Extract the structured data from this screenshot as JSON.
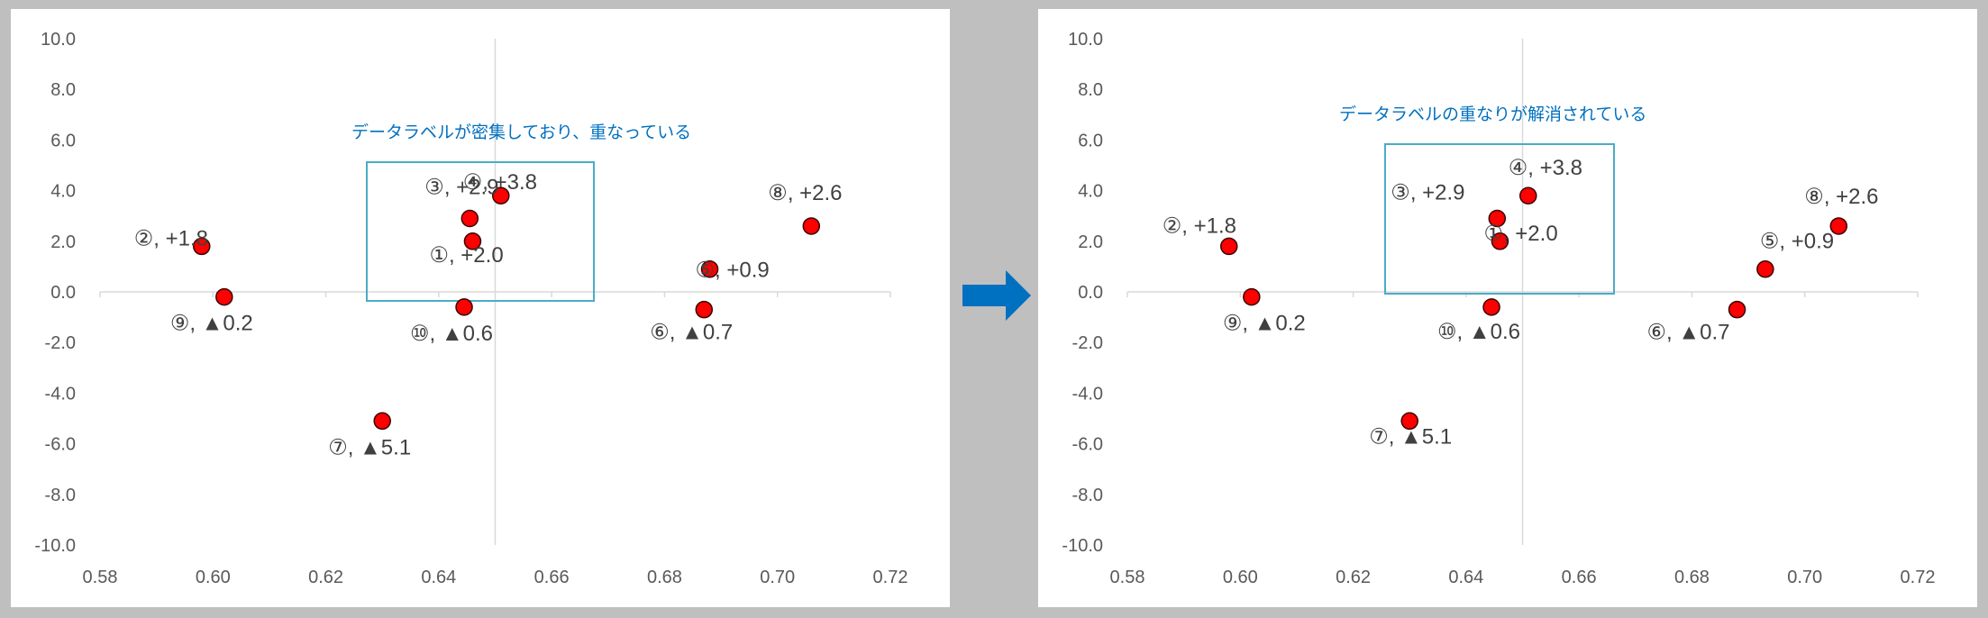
{
  "colors": {
    "background": "#bfbfbf",
    "panel": "#ffffff",
    "axis": "#d9d9d9",
    "tick_text": "#595959",
    "marker_fill": "#ff0000",
    "marker_stroke": "#3a0000",
    "annotation": "#0070c0",
    "annotation_box": "#4bacc6",
    "arrow": "#0070c0",
    "label_text": "#404040"
  },
  "icons": {
    "arrow": "right-arrow-icon"
  },
  "chart_data": [
    {
      "type": "scatter",
      "title": "",
      "xlabel": "",
      "ylabel": "",
      "xlim": [
        0.58,
        0.72
      ],
      "ylim": [
        -10,
        10
      ],
      "x_ticks": [
        "0.58",
        "0.60",
        "0.62",
        "0.64",
        "0.66",
        "0.68",
        "0.70",
        "0.72"
      ],
      "y_ticks": [
        "10.0",
        "8.0",
        "6.0",
        "4.0",
        "2.0",
        "0.0",
        "-2.0",
        "-4.0",
        "-6.0",
        "-8.0",
        "-10.0"
      ],
      "grid": false,
      "x": [
        0.646,
        0.598,
        0.6455,
        0.651,
        0.688,
        0.687,
        0.63,
        0.706,
        0.602,
        0.6445
      ],
      "y": [
        2.0,
        1.8,
        2.9,
        3.8,
        0.9,
        -0.7,
        -5.1,
        2.6,
        -0.2,
        -0.6
      ],
      "labels": [
        "①, +2.0",
        "②, +1.8",
        "③, +2.9",
        "④, +3.8",
        "⑤, +0.9",
        "⑥, ▲0.7",
        "⑦, ▲5.1",
        "⑧, +2.6",
        "⑨, ▲0.2",
        "⑩, ▲0.6"
      ],
      "annotation": "データラベルが密集しており、重なっている"
    },
    {
      "type": "scatter",
      "title": "",
      "xlabel": "",
      "ylabel": "",
      "xlim": [
        0.58,
        0.72
      ],
      "ylim": [
        -10,
        10
      ],
      "x_ticks": [
        "0.58",
        "0.60",
        "0.62",
        "0.64",
        "0.66",
        "0.68",
        "0.70",
        "0.72"
      ],
      "y_ticks": [
        "10.0",
        "8.0",
        "6.0",
        "4.0",
        "2.0",
        "0.0",
        "-2.0",
        "-4.0",
        "-6.0",
        "-8.0",
        "-10.0"
      ],
      "grid": false,
      "x": [
        0.646,
        0.598,
        0.6455,
        0.651,
        0.693,
        0.688,
        0.63,
        0.706,
        0.602,
        0.6445
      ],
      "y": [
        2.0,
        1.8,
        2.9,
        3.8,
        0.9,
        -0.7,
        -5.1,
        2.6,
        -0.2,
        -0.6
      ],
      "labels": [
        "①, +2.0",
        "②, +1.8",
        "③, +2.9",
        "④, +3.8",
        "⑤, +0.9",
        "⑥, ▲0.7",
        "⑦, ▲5.1",
        "⑧, +2.6",
        "⑨, ▲0.2",
        "⑩, ▲0.6"
      ],
      "annotation": "データラベルの重なりが解消されている"
    }
  ]
}
